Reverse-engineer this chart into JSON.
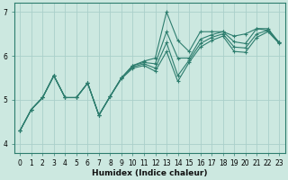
{
  "xlabel": "Humidex (Indice chaleur)",
  "xlim": [
    -0.5,
    23.5
  ],
  "ylim": [
    3.8,
    7.2
  ],
  "yticks": [
    4,
    5,
    6,
    7
  ],
  "xticks": [
    0,
    1,
    2,
    3,
    4,
    5,
    6,
    7,
    8,
    9,
    10,
    11,
    12,
    13,
    14,
    15,
    16,
    17,
    18,
    19,
    20,
    21,
    22,
    23
  ],
  "bg_color": "#cce8e0",
  "grid_color": "#aacfca",
  "line_color": "#2d7d6e",
  "series": [
    {
      "x": [
        0,
        1,
        2,
        3,
        4,
        5,
        6,
        7,
        8,
        9,
        10,
        11,
        12,
        13,
        14,
        15,
        16,
        17,
        18,
        19,
        20,
        21,
        22,
        23
      ],
      "y": [
        4.3,
        4.78,
        5.05,
        5.55,
        5.05,
        5.05,
        5.38,
        4.65,
        5.08,
        5.5,
        5.78,
        5.88,
        5.95,
        7.0,
        6.35,
        6.1,
        6.55,
        6.55,
        6.55,
        6.45,
        6.5,
        6.62,
        6.62,
        6.3
      ]
    },
    {
      "x": [
        0,
        1,
        2,
        3,
        4,
        5,
        6,
        7,
        8,
        9,
        10,
        11,
        12,
        13,
        14,
        15,
        16,
        17,
        18,
        19,
        20,
        21,
        22,
        23
      ],
      "y": [
        4.3,
        4.78,
        5.05,
        5.55,
        5.05,
        5.05,
        5.38,
        4.65,
        5.08,
        5.5,
        5.78,
        5.85,
        5.82,
        6.55,
        5.95,
        5.95,
        6.38,
        6.48,
        6.55,
        6.32,
        6.28,
        6.62,
        6.58,
        6.3
      ]
    },
    {
      "x": [
        0,
        1,
        2,
        3,
        4,
        5,
        6,
        7,
        8,
        9,
        10,
        11,
        12,
        13,
        14,
        15,
        16,
        17,
        18,
        19,
        20,
        21,
        22,
        23
      ],
      "y": [
        4.3,
        4.78,
        5.05,
        5.55,
        5.05,
        5.05,
        5.38,
        4.65,
        5.08,
        5.5,
        5.75,
        5.82,
        5.72,
        6.3,
        5.55,
        5.9,
        6.28,
        6.42,
        6.5,
        6.2,
        6.18,
        6.5,
        6.58,
        6.3
      ]
    },
    {
      "x": [
        0,
        1,
        2,
        3,
        4,
        5,
        6,
        7,
        8,
        9,
        10,
        11,
        12,
        13,
        14,
        15,
        16,
        17,
        18,
        19,
        20,
        21,
        22,
        23
      ],
      "y": [
        4.3,
        4.78,
        5.05,
        5.55,
        5.05,
        5.05,
        5.38,
        4.65,
        5.08,
        5.48,
        5.72,
        5.78,
        5.65,
        6.1,
        5.42,
        5.85,
        6.2,
        6.35,
        6.45,
        6.1,
        6.08,
        6.42,
        6.55,
        6.28
      ]
    }
  ]
}
